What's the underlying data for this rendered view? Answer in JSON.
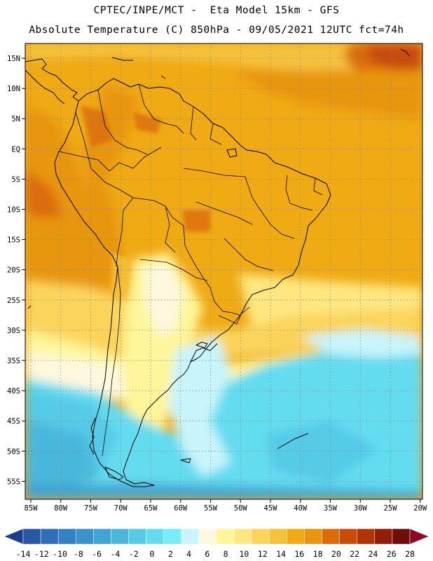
{
  "header": {
    "line1": "CPTEC/INPE/MCT -  Eta Model 15km - GFS",
    "line2": "Absolute Temperature (C) 850hPa - 09/05/2021 12UTC fct=74h"
  },
  "axes": {
    "lat_labels": [
      "15N",
      "10N",
      "5N",
      "EQ",
      "5S",
      "10S",
      "15S",
      "20S",
      "25S",
      "30S",
      "35S",
      "40S",
      "45S",
      "50S",
      "55S"
    ],
    "lon_labels": [
      "85W",
      "80W",
      "75W",
      "70W",
      "65W",
      "60W",
      "55W",
      "50W",
      "45W",
      "40W",
      "35W",
      "30W",
      "25W",
      "20W"
    ]
  },
  "colorbar": {
    "labels": [
      "-14",
      "-12",
      "-10",
      "-8",
      "-6",
      "-4",
      "-2",
      "0",
      "2",
      "4",
      "6",
      "8",
      "10",
      "12",
      "14",
      "16",
      "18",
      "20",
      "22",
      "24",
      "26",
      "28"
    ],
    "colors": [
      "#1e3c8c",
      "#2857a5",
      "#2f6fb5",
      "#3580c0",
      "#3b91c8",
      "#42a4d2",
      "#4ab7dc",
      "#55cbe8",
      "#64dcf0",
      "#78ecf8",
      "#c8f4fb",
      "#fdf8de",
      "#fff59a",
      "#ffe680",
      "#fbd45c",
      "#f5c23c",
      "#f0aa14",
      "#e89610",
      "#dc6c0a",
      "#c84c08",
      "#b03406",
      "#901f06",
      "#6e0e0a",
      "#8c0a28"
    ]
  },
  "map_info": {
    "projection": "lat-lon",
    "lon_range": [
      -86,
      -19
    ],
    "lat_range": [
      -58,
      16
    ],
    "temperature_range_c": [
      -14,
      28
    ]
  }
}
